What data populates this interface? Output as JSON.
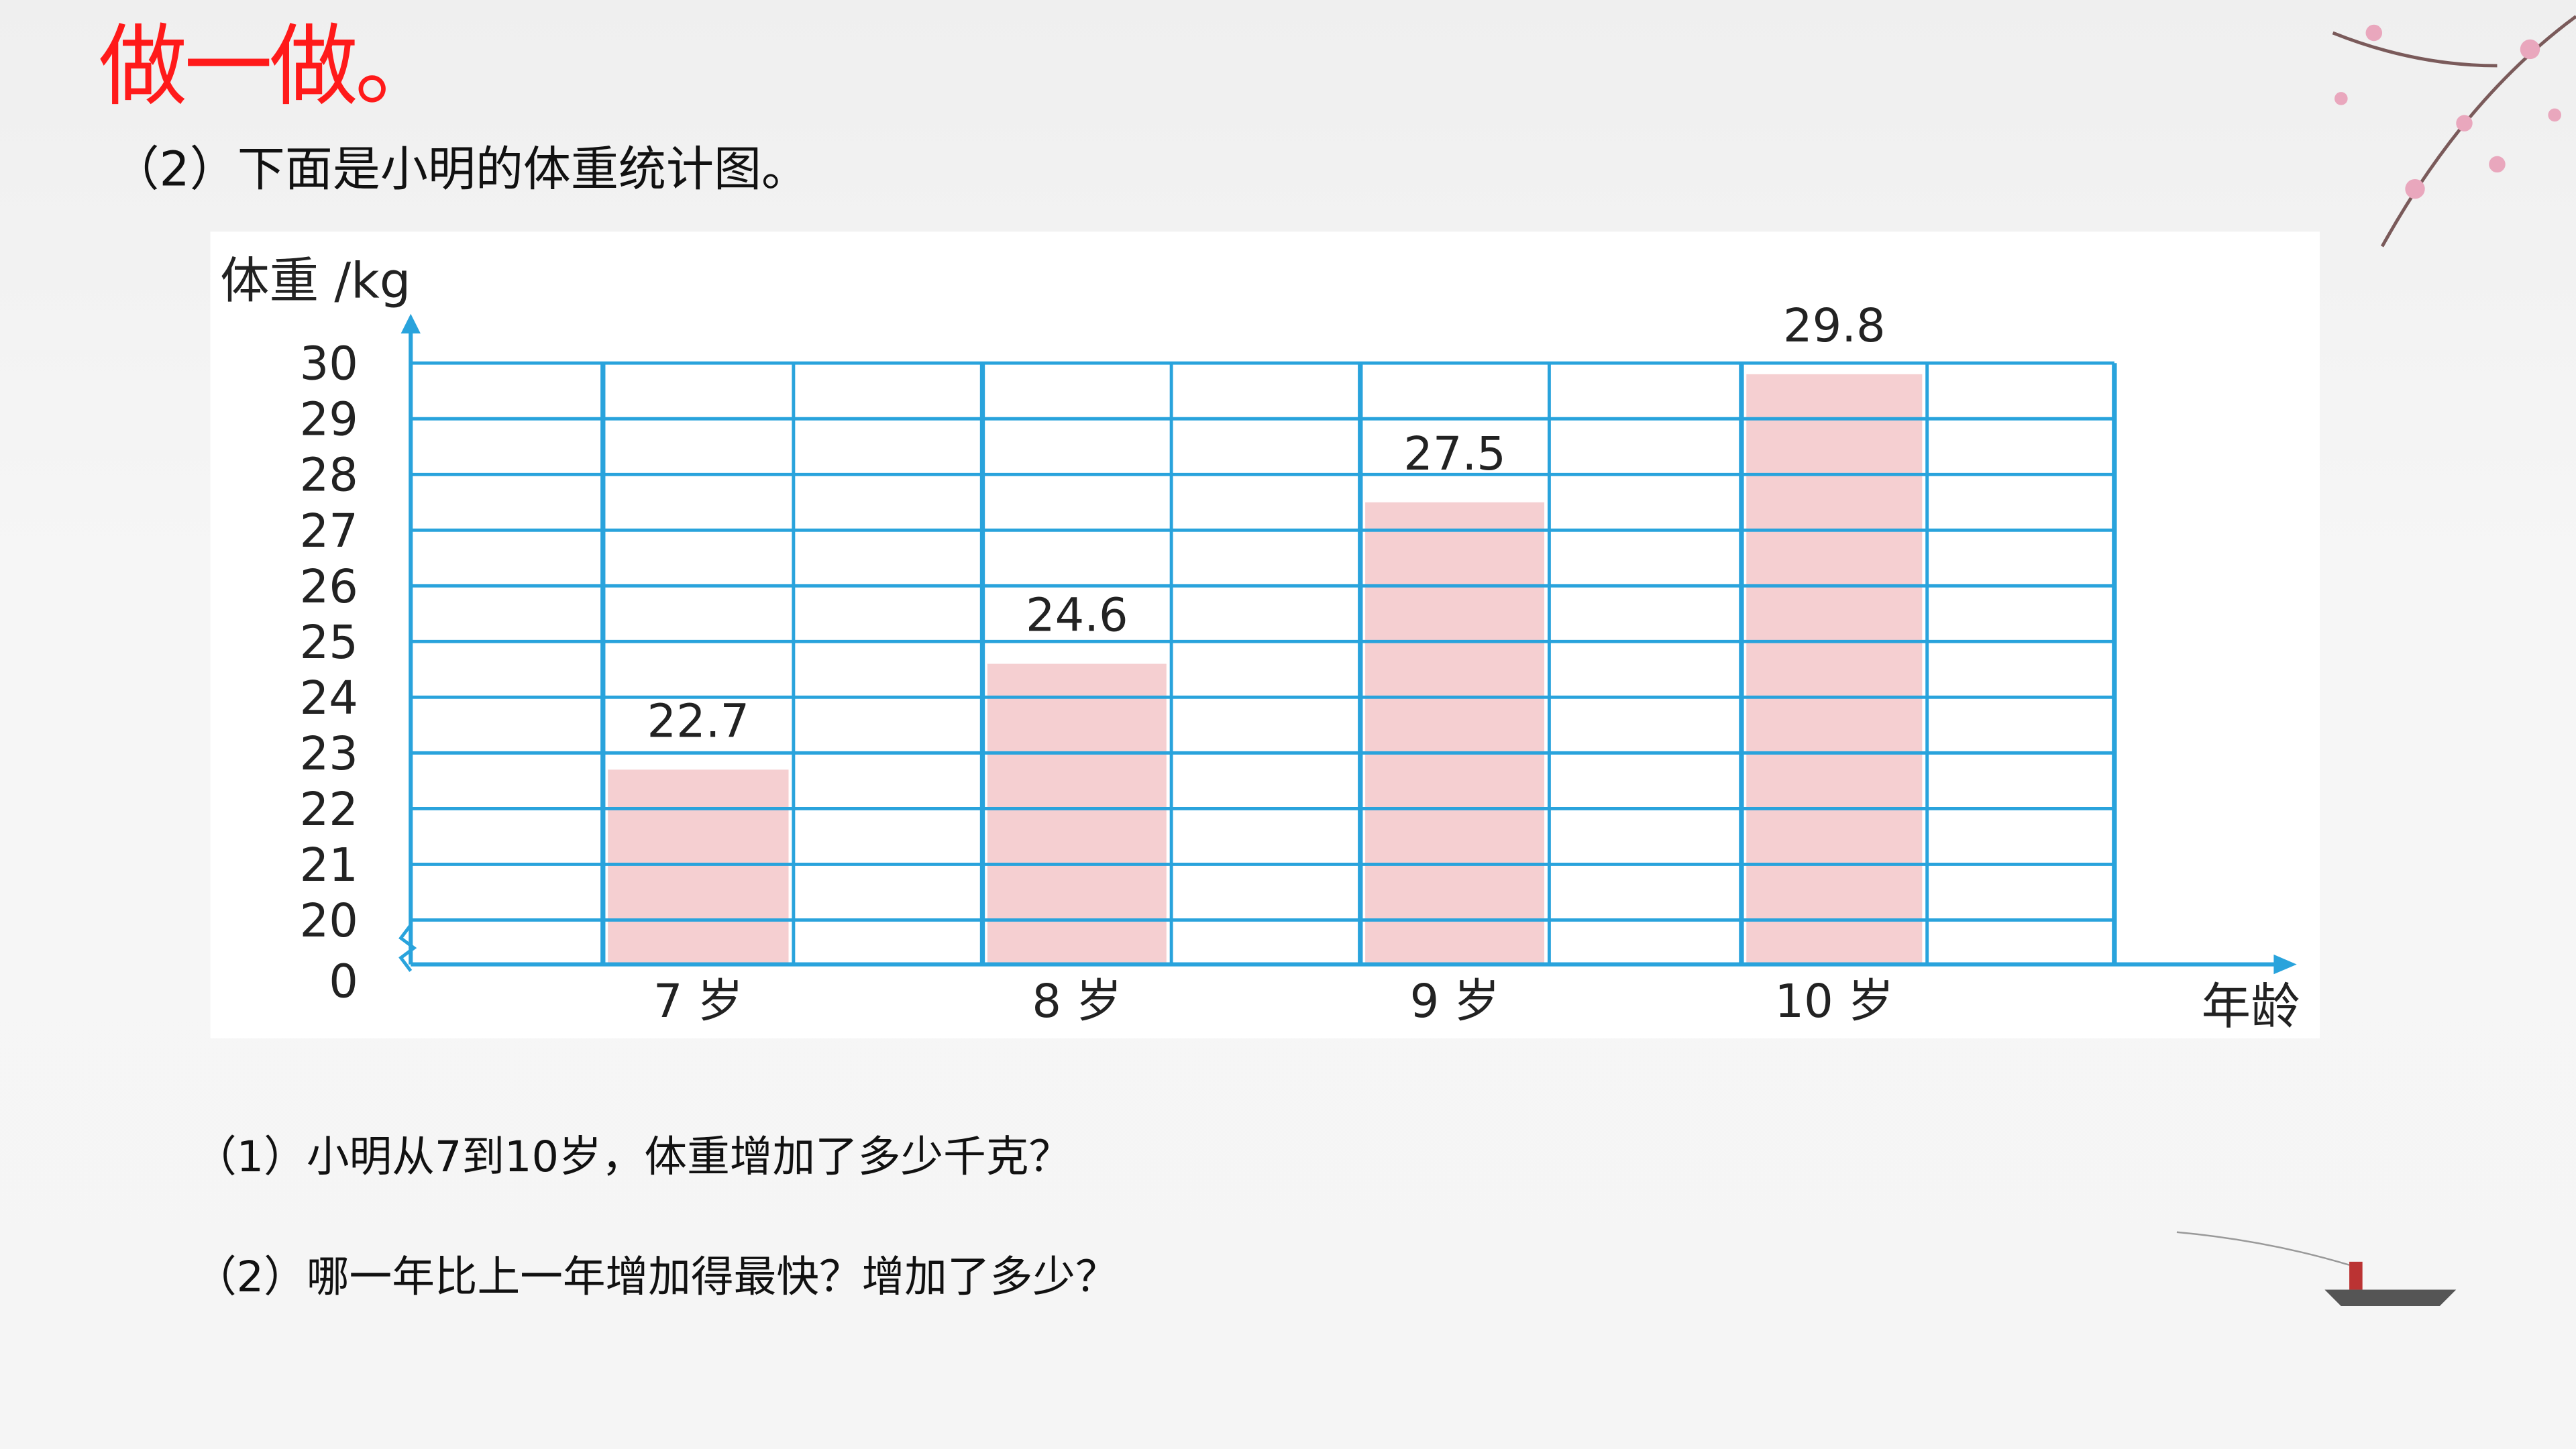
{
  "heading": "做一做。",
  "subtitle": "（2）下面是小明的体重统计图。",
  "questions": [
    "（1）小明从7到10岁，体重增加了多少千克？",
    "（2）哪一年比上一年增加得最快？增加了多少？"
  ],
  "chart_data": {
    "type": "bar",
    "ylabel": "体重 /kg",
    "xlabel": "年龄",
    "categories": [
      "7 岁",
      "8 岁",
      "9 岁",
      "10 岁"
    ],
    "values": [
      22.7,
      24.6,
      27.5,
      29.8
    ],
    "data_labels": [
      "22.7",
      "24.6",
      "27.5",
      "29.8"
    ],
    "yticks": [
      "0",
      "20",
      "21",
      "22",
      "23",
      "24",
      "25",
      "26",
      "27",
      "28",
      "29",
      "30"
    ],
    "ylim": [
      20,
      30
    ],
    "axis_break": true,
    "grid": true,
    "colors": {
      "bar": "#f5cfd1",
      "grid": "#29a3dc",
      "text": "#222222"
    }
  }
}
